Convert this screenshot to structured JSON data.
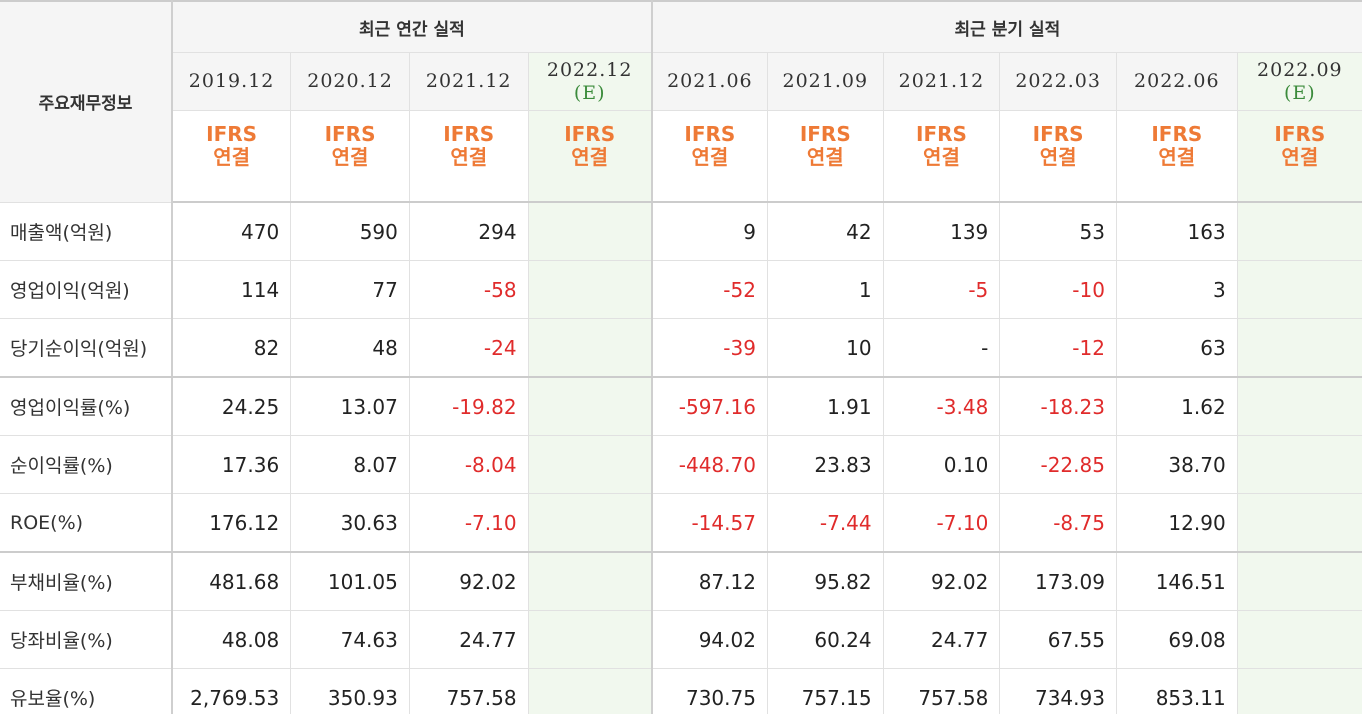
{
  "header": {
    "corner_label": "주요재무정보",
    "annual_group": "최근 연간 실적",
    "quarterly_group": "최근 분기 실적",
    "periods": [
      {
        "label": "2019.12",
        "estimate": false,
        "est_mark": ""
      },
      {
        "label": "2020.12",
        "estimate": false,
        "est_mark": ""
      },
      {
        "label": "2021.12",
        "estimate": false,
        "est_mark": ""
      },
      {
        "label": "2022.12",
        "estimate": true,
        "est_mark": "(E)"
      },
      {
        "label": "2021.06",
        "estimate": false,
        "est_mark": ""
      },
      {
        "label": "2021.09",
        "estimate": false,
        "est_mark": ""
      },
      {
        "label": "2021.12",
        "estimate": false,
        "est_mark": ""
      },
      {
        "label": "2022.03",
        "estimate": false,
        "est_mark": ""
      },
      {
        "label": "2022.06",
        "estimate": false,
        "est_mark": ""
      },
      {
        "label": "2022.09",
        "estimate": true,
        "est_mark": "(E)"
      }
    ],
    "standard_line1": "IFRS",
    "standard_line2": "연결"
  },
  "colors": {
    "negative": "#e02b2b",
    "standard": "#ee7a36",
    "estimate_bg": "#f1f8ee",
    "estimate_mark": "#3b8b3b",
    "header_bg": "#f5f5f5"
  },
  "rows": [
    {
      "label": "매출액(억원)",
      "values": [
        "470",
        "590",
        "294",
        "",
        "9",
        "42",
        "139",
        "53",
        "163",
        ""
      ]
    },
    {
      "label": "영업이익(억원)",
      "values": [
        "114",
        "77",
        "-58",
        "",
        "-52",
        "1",
        "-5",
        "-10",
        "3",
        ""
      ]
    },
    {
      "label": "당기순이익(억원)",
      "values": [
        "82",
        "48",
        "-24",
        "",
        "-39",
        "10",
        "-",
        "-12",
        "63",
        ""
      ]
    },
    {
      "label": "영업이익률(%)",
      "values": [
        "24.25",
        "13.07",
        "-19.82",
        "",
        "-597.16",
        "1.91",
        "-3.48",
        "-18.23",
        "1.62",
        ""
      ]
    },
    {
      "label": "순이익률(%)",
      "values": [
        "17.36",
        "8.07",
        "-8.04",
        "",
        "-448.70",
        "23.83",
        "0.10",
        "-22.85",
        "38.70",
        ""
      ]
    },
    {
      "label": "ROE(%)",
      "values": [
        "176.12",
        "30.63",
        "-7.10",
        "",
        "-14.57",
        "-7.44",
        "-7.10",
        "-8.75",
        "12.90",
        ""
      ]
    },
    {
      "label": "부채비율(%)",
      "values": [
        "481.68",
        "101.05",
        "92.02",
        "",
        "87.12",
        "95.82",
        "92.02",
        "173.09",
        "146.51",
        ""
      ]
    },
    {
      "label": "당좌비율(%)",
      "values": [
        "48.08",
        "74.63",
        "24.77",
        "",
        "94.02",
        "60.24",
        "24.77",
        "67.55",
        "69.08",
        ""
      ]
    },
    {
      "label": "유보율(%)",
      "values": [
        "2,769.53",
        "350.93",
        "757.58",
        "",
        "730.75",
        "757.15",
        "757.58",
        "734.93",
        "853.11",
        ""
      ]
    }
  ]
}
